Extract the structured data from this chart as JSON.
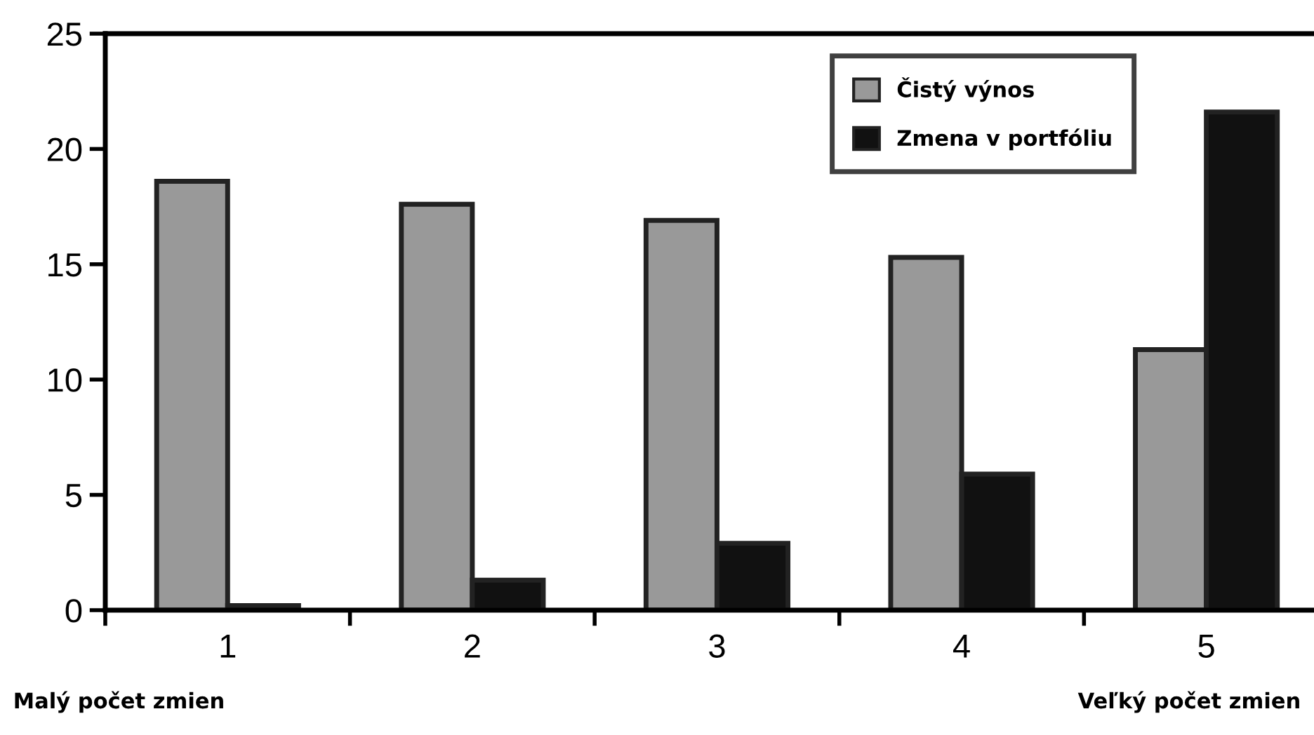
{
  "chart_data": {
    "type": "bar",
    "categories": [
      "1",
      "2",
      "3",
      "4",
      "5"
    ],
    "series": [
      {
        "name": "Čistý výnos",
        "color": "#999999",
        "values": [
          18.6,
          17.6,
          16.9,
          15.3,
          11.3
        ]
      },
      {
        "name": "Zmena v portfóliu",
        "color": "#111111",
        "values": [
          0.2,
          1.3,
          2.9,
          5.9,
          21.6
        ]
      }
    ],
    "ylim": [
      0,
      25
    ],
    "yticks": [
      0,
      5,
      10,
      15,
      20,
      25
    ],
    "grid": false,
    "legend": "top right",
    "annotations": [
      "Malý počet zmien",
      "Veľký počet zmien"
    ]
  }
}
